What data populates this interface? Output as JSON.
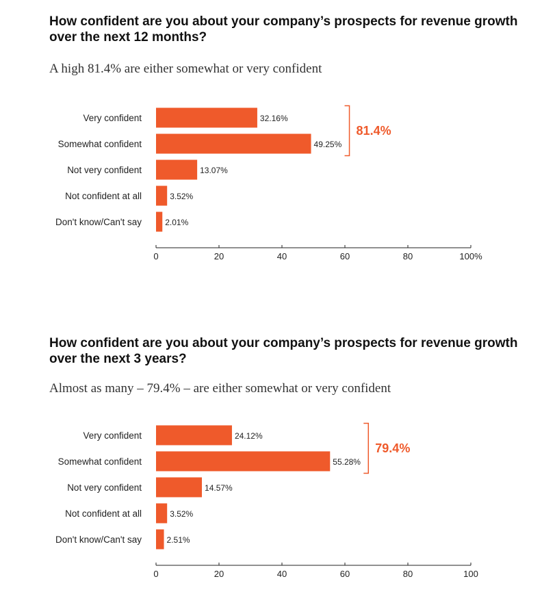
{
  "colors": {
    "bar": "#EF5A2B",
    "accent": "#EF5A2B",
    "axis": "#222222"
  },
  "chart_data": [
    {
      "type": "bar",
      "orientation": "horizontal",
      "title": "How confident are you about your company’s prospects for revenue growth over the next 12 months?",
      "subtitle": "A high 81.4% are either somewhat or very confident",
      "categories": [
        "Very confident",
        "Somewhat confident",
        "Not very confident",
        "Not confident at all",
        "Don't know/Can't say"
      ],
      "values": [
        32.16,
        49.25,
        13.07,
        3.52,
        2.01
      ],
      "value_labels": [
        "32.16%",
        "49.25%",
        "13.07%",
        "3.52%",
        "2.01%"
      ],
      "xlim": [
        0,
        100
      ],
      "xticks": [
        "0",
        "20",
        "40",
        "60",
        "80",
        "100%"
      ],
      "bracket": {
        "label": "81.4%",
        "covers": [
          "Very confident",
          "Somewhat confident"
        ]
      }
    },
    {
      "type": "bar",
      "orientation": "horizontal",
      "title": "How confident are you about your company’s prospects for revenue growth over the next 3 years?",
      "subtitle": "Almost as many – 79.4% – are either somewhat or very confident",
      "categories": [
        "Very confident",
        "Somewhat confident",
        "Not very confident",
        "Not confident at all",
        "Don't know/Can't say"
      ],
      "values": [
        24.12,
        55.28,
        14.57,
        3.52,
        2.51
      ],
      "value_labels": [
        "24.12%",
        "55.28%",
        "14.57%",
        "3.52%",
        "2.51%"
      ],
      "xlim": [
        0,
        100
      ],
      "xticks": [
        "0",
        "20",
        "40",
        "60",
        "80",
        "100"
      ],
      "bracket": {
        "label": "79.4%",
        "covers": [
          "Very confident",
          "Somewhat confident"
        ]
      }
    }
  ]
}
